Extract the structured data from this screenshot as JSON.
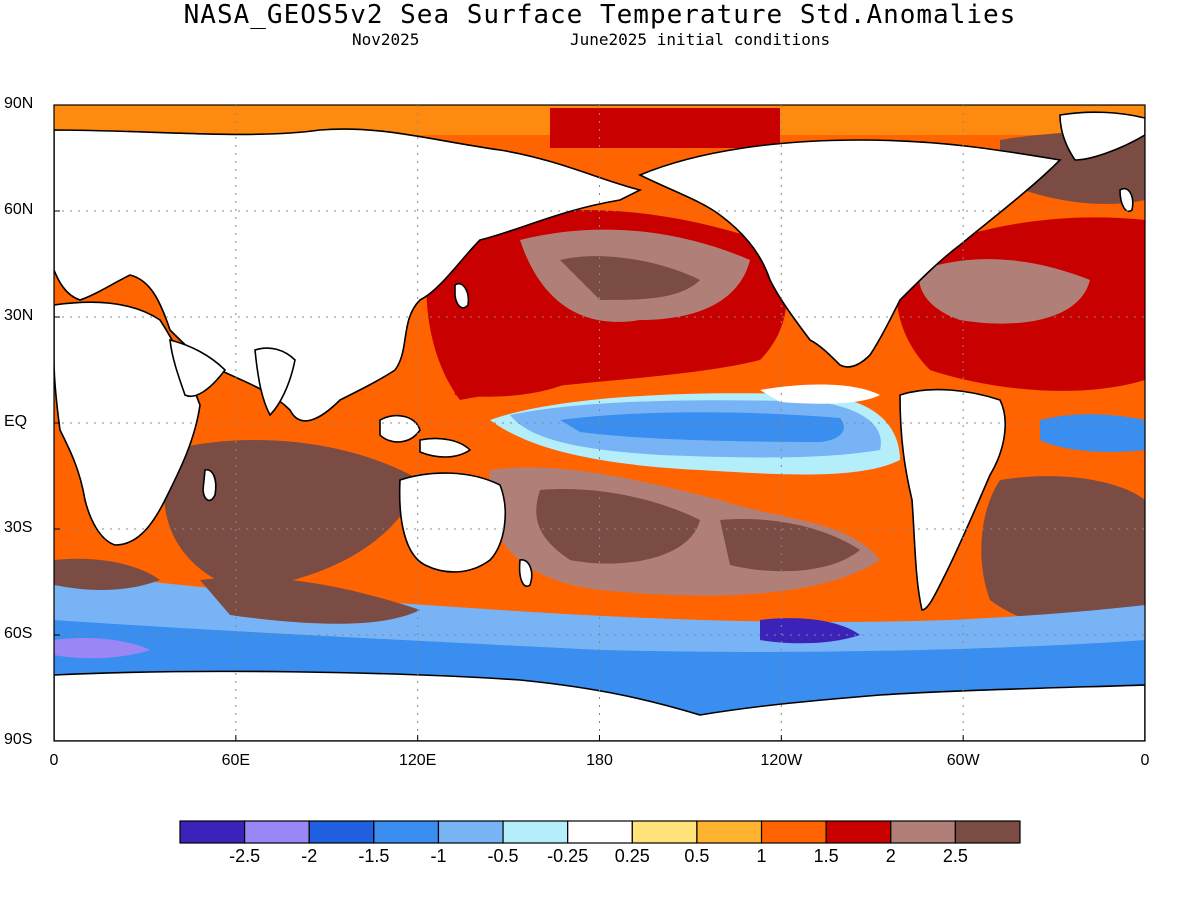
{
  "title": "NASA_GEOS5v2 Sea Surface Temperature Std.Anomalies",
  "subtitle_left": "Nov2025",
  "subtitle_right": "June2025 initial conditions",
  "y_axis_labels": [
    "90N",
    "60N",
    "30N",
    "EQ",
    "30S",
    "60S",
    "90S"
  ],
  "x_axis_labels": [
    "0",
    "60E",
    "120E",
    "180",
    "120W",
    "60W",
    "0"
  ],
  "colorbar": {
    "colors": [
      "#3b22b8",
      "#9a87f5",
      "#1f5fe0",
      "#3a8ef0",
      "#78b4f5",
      "#b4eefa",
      "#ffffff",
      "#ffe37a",
      "#ffb330",
      "#ff6400",
      "#c80000",
      "#b08078",
      "#7a4c44"
    ],
    "labels": [
      "-2.5",
      "-2",
      "-1.5",
      "-1",
      "-0.5",
      "-0.25",
      "0.25",
      "0.5",
      "1",
      "1.5",
      "2",
      "2.5"
    ]
  },
  "land_color": "#ffffff",
  "coastline_color": "#000000"
}
